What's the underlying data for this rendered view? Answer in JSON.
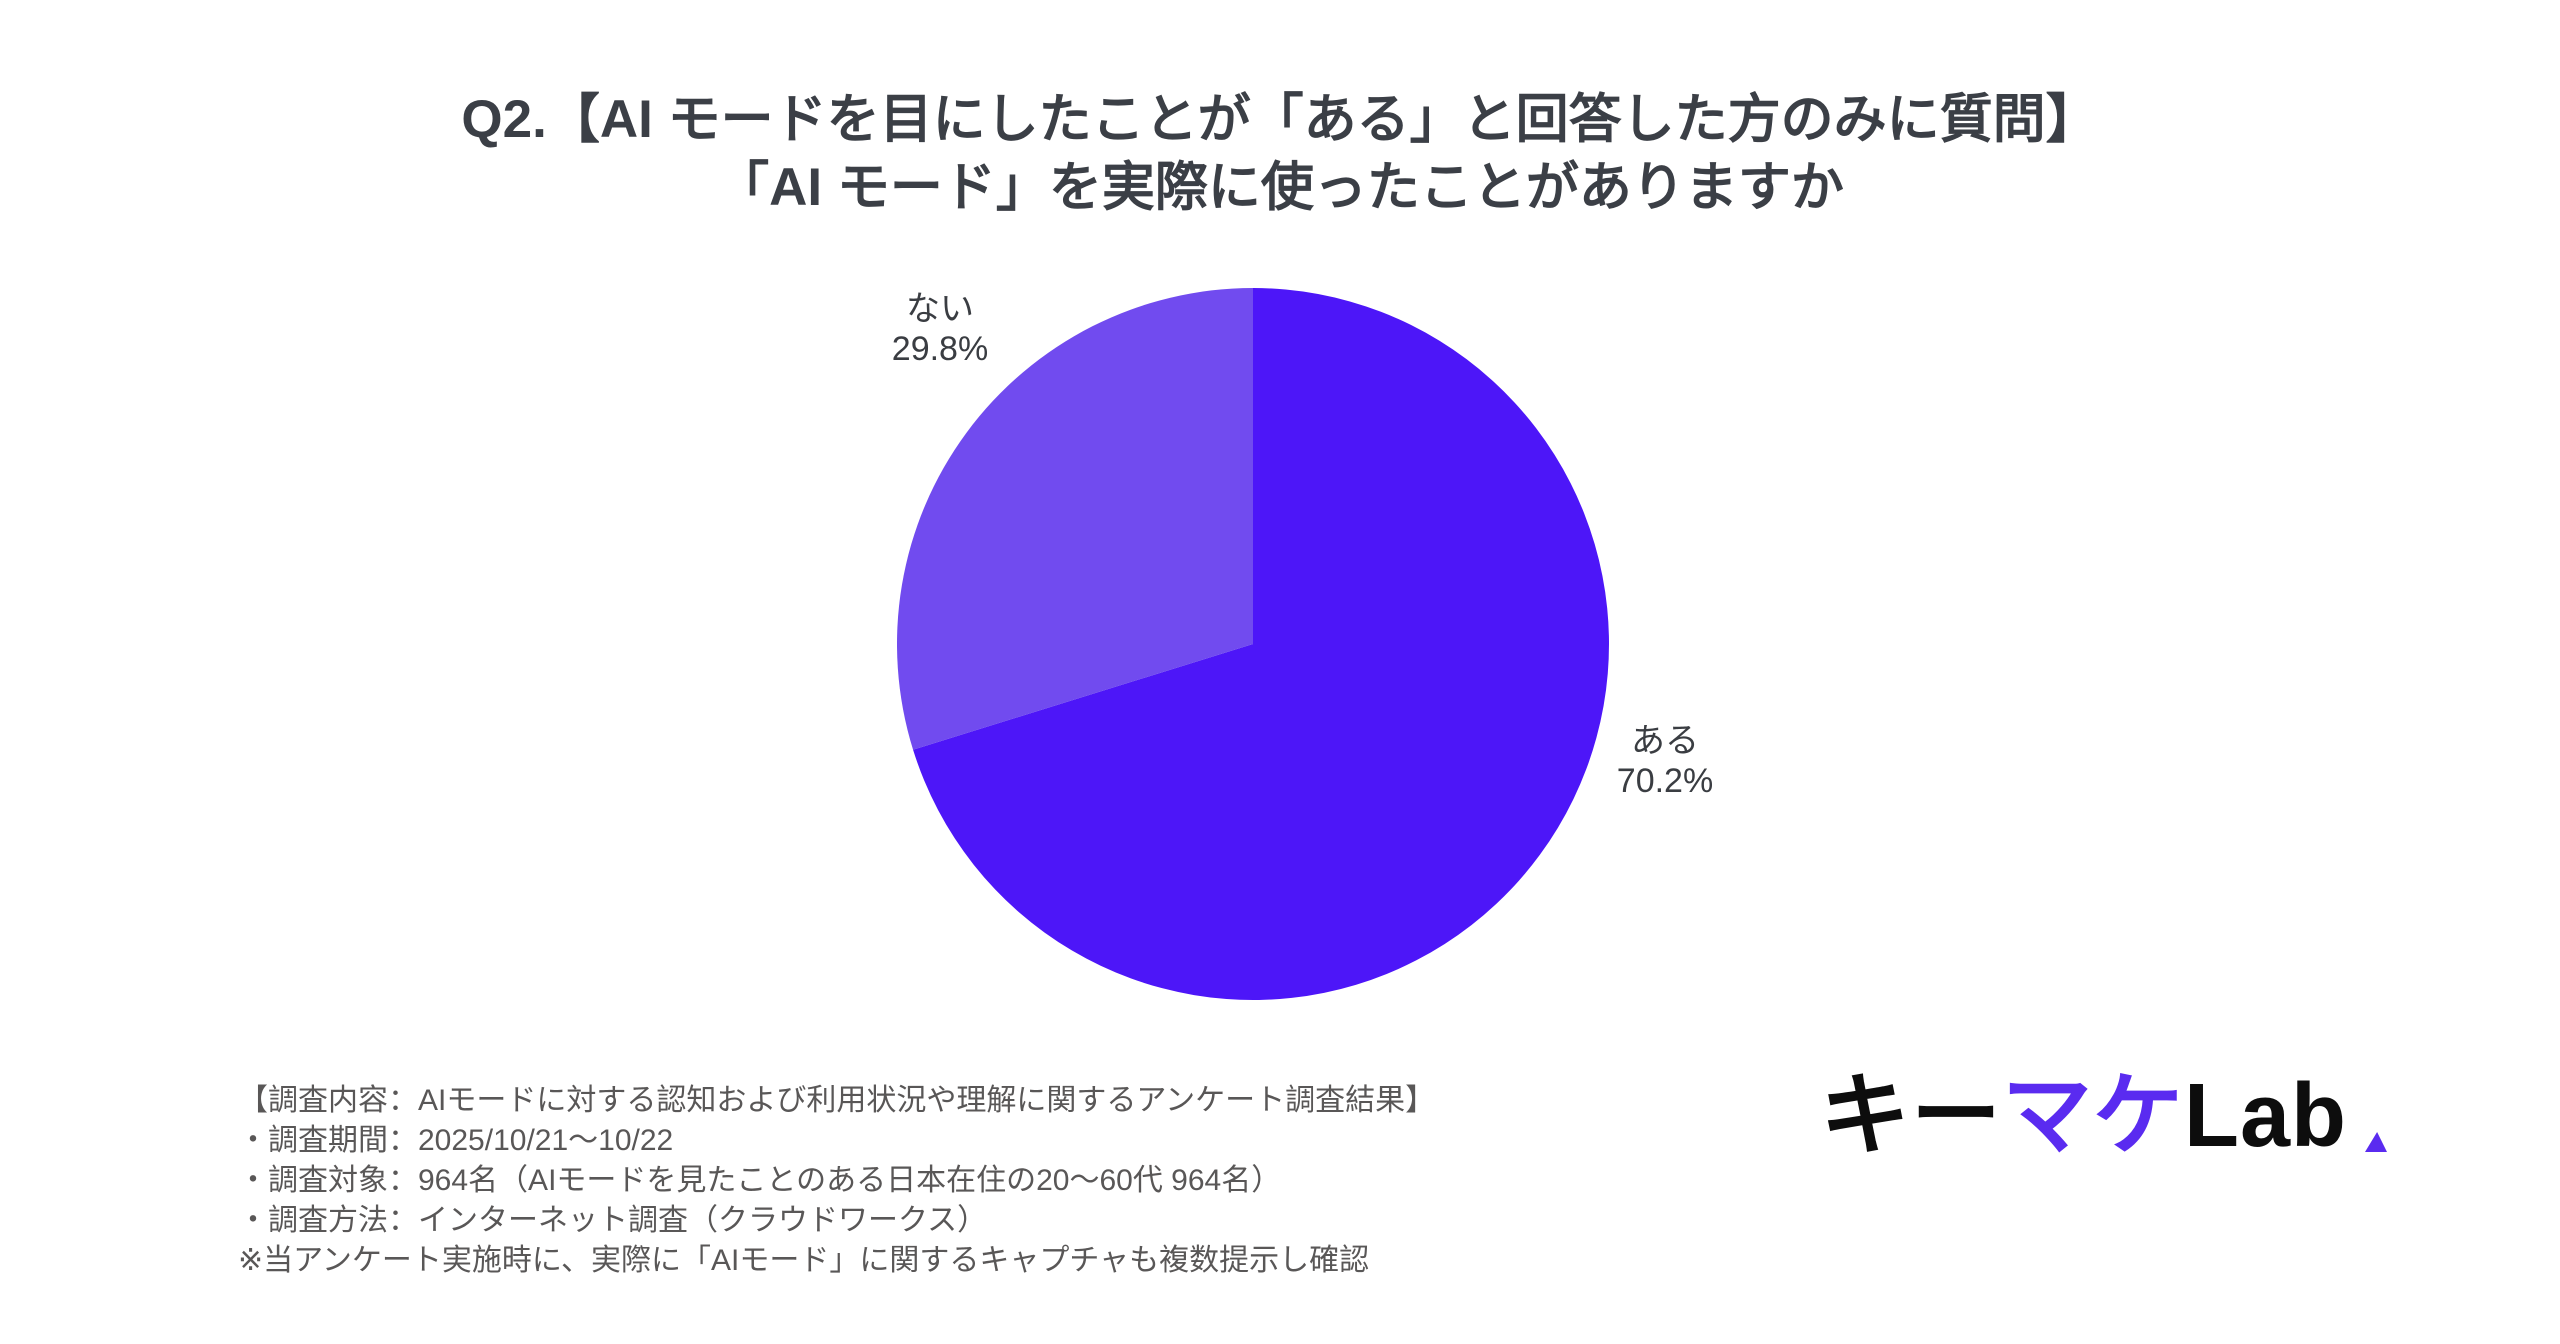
{
  "title": {
    "line1": "Q2.【AI モードを目にしたことが「ある」と回答した方のみに質問】",
    "line2": "「AI モード」を実際に使ったことがありますか"
  },
  "chart_data": {
    "type": "pie",
    "title": "Q2.【AI モードを目にしたことが「ある」と回答した方のみに質問】「AI モード」を実際に使ったことがありますか",
    "categories": [
      "ある",
      "ない"
    ],
    "values": [
      70.2,
      29.8
    ],
    "slices": [
      {
        "key": "aru",
        "label": "ある",
        "value": 70.2,
        "display": "70.2%",
        "color": "#4d16f8"
      },
      {
        "key": "nai",
        "label": "ない",
        "value": 29.8,
        "display": "29.8%",
        "color": "#714bef"
      }
    ],
    "start_angle_deg": 0,
    "direction": "clockwise",
    "legend": "none",
    "label_position": "outside"
  },
  "footer": {
    "lines": [
      "【調査内容：AIモードに対する認知および利用状況や理解に関するアンケート調査結果】",
      "・調査期間：2025/10/21〜10/22",
      "・調査対象：964名（AIモードを見たことのある日本在住の20〜60代 964名）",
      "・調査方法：インターネット調査（クラウドワークス）",
      "※当アンケート実施時に、実際に「AIモード」に関するキャプチャも複数提示し確認"
    ]
  },
  "logo": {
    "part1": "キー",
    "part2": "マケ",
    "part3": "Lab",
    "accent_color": "#5a2bf0"
  }
}
